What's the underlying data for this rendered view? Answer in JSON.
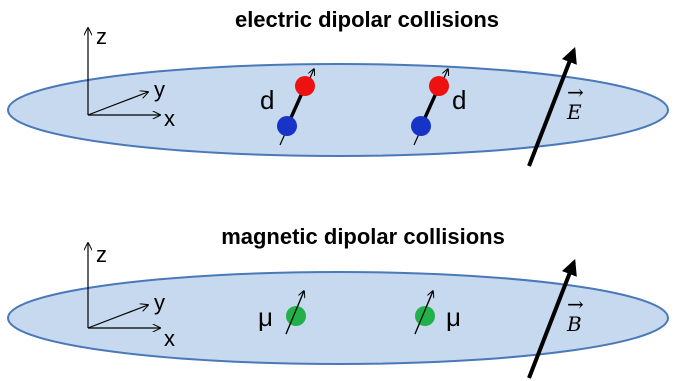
{
  "panels": [
    {
      "title": "electric dipolar collisions",
      "axis": {
        "z": "z",
        "y": "y",
        "x": "x"
      },
      "dipole_label_left": "d",
      "dipole_label_right": "d",
      "field_label": "E",
      "field_arrow_symbol": "→"
    },
    {
      "title": "magnetic dipolar collisions",
      "axis": {
        "z": "z",
        "y": "y",
        "x": "x"
      },
      "dipole_label_left": "μ",
      "dipole_label_right": "μ",
      "field_label": "B",
      "field_arrow_symbol": "→"
    }
  ],
  "colors": {
    "disk_fill": "#c6d9ee",
    "disk_stroke": "#4a78b8",
    "positive_charge": "#ee1111",
    "negative_charge": "#1733c8",
    "magnetic_dipole": "#22b04a"
  }
}
